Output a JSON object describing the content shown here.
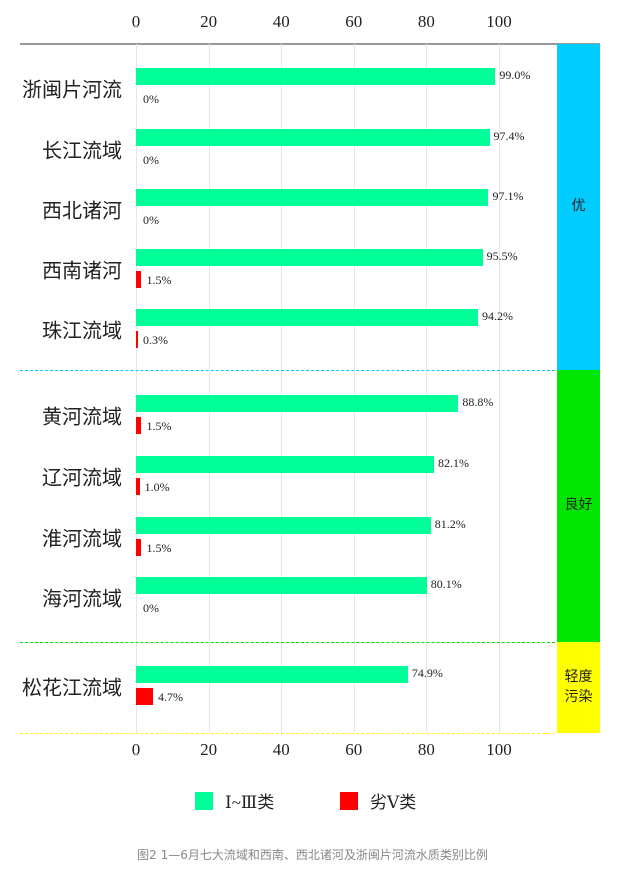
{
  "chart_data": {
    "type": "bar",
    "orientation": "horizontal",
    "xlim": [
      0,
      100
    ],
    "xticks": [
      "0",
      "20",
      "40",
      "60",
      "80",
      "100"
    ],
    "categories": [
      "浙闽片河流",
      "长江流域",
      "西北诸河",
      "西南诸河",
      "珠江流域",
      "黄河流域",
      "辽河流域",
      "淮河流域",
      "海河流域",
      "松花江流域"
    ],
    "series": [
      {
        "name": "Ⅰ~Ⅲ类",
        "color": "#00ff99",
        "values": [
          99.0,
          97.4,
          97.1,
          95.5,
          94.2,
          88.8,
          82.1,
          81.2,
          80.1,
          74.9
        ],
        "labels": [
          "99.0%",
          "97.4%",
          "97.1%",
          "95.5%",
          "94.2%",
          "88.8%",
          "82.1%",
          "81.2%",
          "80.1%",
          "74.9%"
        ]
      },
      {
        "name": "劣Ⅴ类",
        "color": "#ff0000",
        "values": [
          0,
          0,
          0,
          1.5,
          0.3,
          1.5,
          1.0,
          1.5,
          0,
          4.7
        ],
        "labels": [
          "0%",
          "0%",
          "0%",
          "1.5%",
          "0.3%",
          "1.5%",
          "1.0%",
          "1.5%",
          "0%",
          "4.7%"
        ]
      }
    ],
    "groups": [
      {
        "label": "优",
        "color": "#00ccff",
        "count": 5
      },
      {
        "label": "良好",
        "color": "#00e600",
        "count": 4
      },
      {
        "label": "轻度污染",
        "color": "#ffff00",
        "count": 1
      }
    ],
    "grid": true,
    "legend": "bottom"
  },
  "caption": "图2 1—6月七大流域和西南、西北诸河及浙闽片河流水质类别比例"
}
